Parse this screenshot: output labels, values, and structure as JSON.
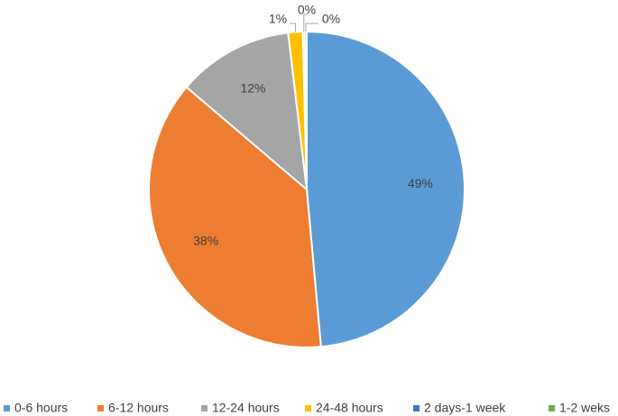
{
  "chart_data": {
    "type": "pie",
    "title": "",
    "categories": [
      "0-6 hours",
      "6-12 hours",
      "12-24 hours",
      "24-48 hours",
      "2 days-1 week",
      "1-2 weks"
    ],
    "values": [
      49,
      38,
      12,
      1.5,
      0.2,
      0.2
    ],
    "labels": [
      "49%",
      "38%",
      "12%",
      "1%",
      "0%",
      "0%"
    ],
    "colors": [
      "#5B9BD5",
      "#ED7D31",
      "#A5A5A5",
      "#FFC000",
      "#4472C4",
      "#70AD47"
    ],
    "legend_position": "bottom"
  }
}
